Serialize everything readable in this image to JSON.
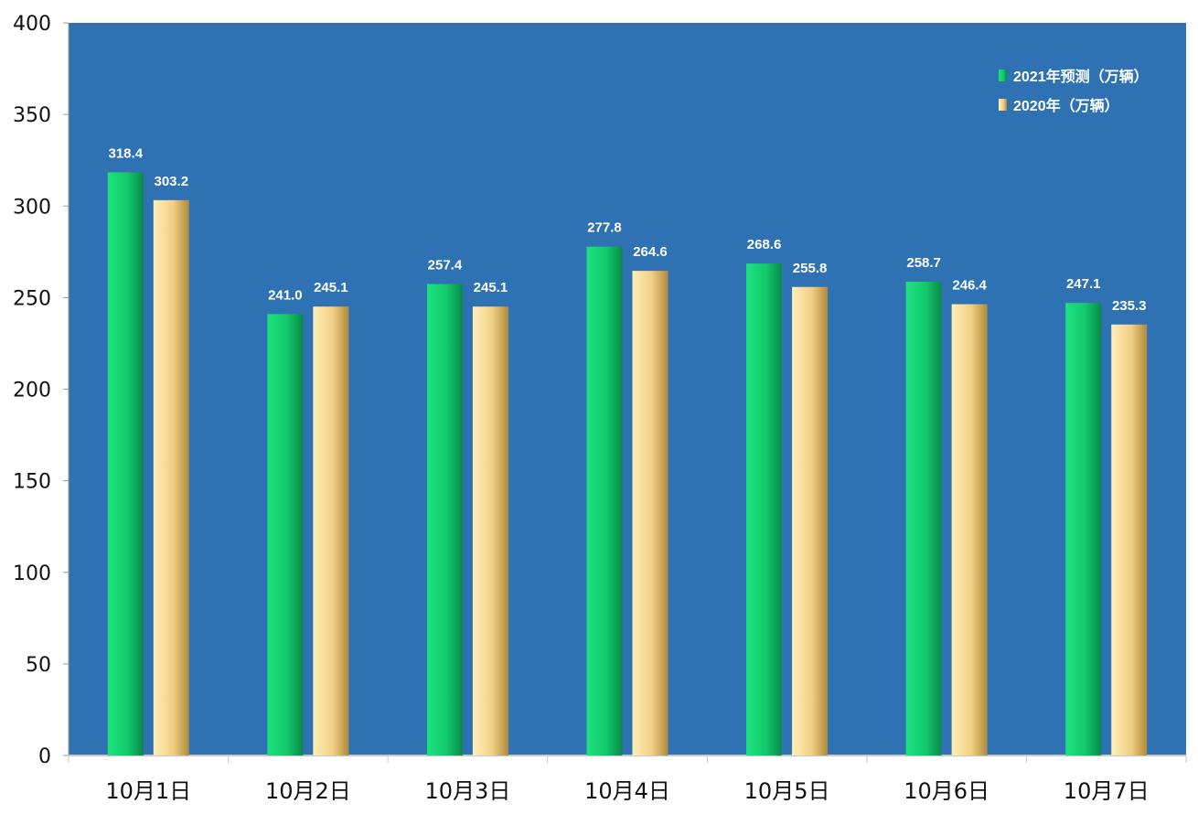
{
  "chart_data": {
    "type": "bar",
    "categories": [
      "10月1日",
      "10月2日",
      "10月3日",
      "10月4日",
      "10月5日",
      "10月6日",
      "10月7日"
    ],
    "series": [
      {
        "name": "2021年预测（万辆）",
        "values": [
          318.4,
          241.0,
          257.4,
          277.8,
          268.6,
          258.7,
          247.1
        ],
        "labels": [
          "318.4",
          "241.0",
          "257.4",
          "277.8",
          "268.6",
          "258.7",
          "247.1"
        ],
        "color": "#16d275"
      },
      {
        "name": "2020年（万辆）",
        "values": [
          303.2,
          245.1,
          245.1,
          264.6,
          255.8,
          246.4,
          235.3
        ],
        "labels": [
          "303.2",
          "245.1",
          "245.1",
          "264.6",
          "255.8",
          "246.4",
          "235.3"
        ],
        "color": "#f5d890"
      }
    ],
    "title": "",
    "xlabel": "",
    "ylabel": "",
    "ylim": [
      0,
      400
    ],
    "yticks": [
      "0",
      "50",
      "100",
      "150",
      "200",
      "250",
      "300",
      "350",
      "400"
    ],
    "grid": false,
    "legend": "top-right",
    "plot_background": "#2e72b4"
  }
}
